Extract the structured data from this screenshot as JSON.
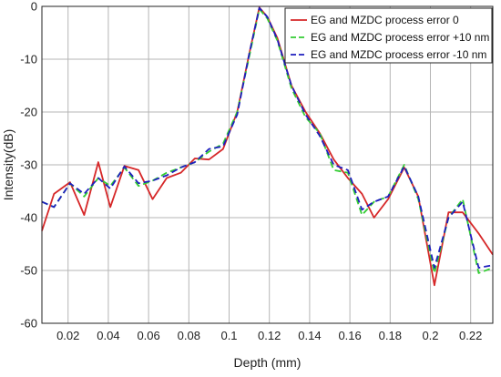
{
  "chart_data": {
    "type": "line",
    "title": "",
    "xlabel": "Depth (mm)",
    "ylabel": "Intensity(dB)",
    "xlim": [
      0.007,
      0.231
    ],
    "ylim": [
      -60,
      0
    ],
    "grid": true,
    "legend_position": "top-right",
    "x_ticks": [
      0.02,
      0.04,
      0.06,
      0.08,
      0.1,
      0.12,
      0.14,
      0.16,
      0.18,
      0.2,
      0.22
    ],
    "x_tick_labels": [
      "0.02",
      "0.04",
      "0.06",
      "0.08",
      "0.1",
      "0.12",
      "0.14",
      "0.16",
      "0.18",
      "0.2",
      "0.22"
    ],
    "y_ticks": [
      0,
      -10,
      -20,
      -30,
      -40,
      -50,
      -60
    ],
    "y_tick_labels": [
      "0",
      "-10",
      "-20",
      "-30",
      "-40",
      "-50",
      "-60"
    ],
    "series": [
      {
        "name": "EG and MZDC process error 0",
        "color": "#d62728",
        "dash": "solid",
        "x": [
          0.007,
          0.013,
          0.021,
          0.028,
          0.035,
          0.041,
          0.048,
          0.055,
          0.062,
          0.069,
          0.076,
          0.083,
          0.09,
          0.097,
          0.104,
          0.11,
          0.115,
          0.119,
          0.124,
          0.131,
          0.138,
          0.145,
          0.152,
          0.159,
          0.166,
          0.172,
          0.179,
          0.187,
          0.194,
          0.202,
          0.209,
          0.216,
          0.224,
          0.231
        ],
        "y": [
          -42.5,
          -35.5,
          -33.3,
          -39.5,
          -29.5,
          -38.0,
          -30.2,
          -31.0,
          -36.5,
          -32.5,
          -31.5,
          -28.8,
          -29.0,
          -27.0,
          -20.0,
          -9.0,
          -0.2,
          -2.0,
          -6.0,
          -15.0,
          -20.0,
          -24.0,
          -29.0,
          -32.5,
          -35.5,
          -40.0,
          -36.5,
          -30.5,
          -36.0,
          -52.8,
          -39.0,
          -39.0,
          -43.0,
          -47.0
        ]
      },
      {
        "name": "EG and MZDC process error +10 nm",
        "color": "#33cc33",
        "dash": "7,4",
        "x": [
          0.007,
          0.013,
          0.021,
          0.028,
          0.035,
          0.041,
          0.048,
          0.055,
          0.062,
          0.069,
          0.076,
          0.083,
          0.09,
          0.097,
          0.104,
          0.11,
          0.115,
          0.119,
          0.124,
          0.131,
          0.138,
          0.145,
          0.152,
          0.159,
          0.166,
          0.172,
          0.179,
          0.187,
          0.194,
          0.202,
          0.209,
          0.216,
          0.224,
          0.231
        ],
        "y": [
          -37.0,
          -38.0,
          -33.5,
          -36.0,
          -32.5,
          -34.0,
          -30.5,
          -34.0,
          -33.0,
          -31.5,
          -30.5,
          -29.5,
          -27.5,
          -26.0,
          -20.0,
          -9.5,
          -0.5,
          -2.3,
          -6.5,
          -15.5,
          -21.0,
          -24.0,
          -31.0,
          -31.5,
          -39.5,
          -37.0,
          -36.0,
          -30.0,
          -36.5,
          -50.5,
          -40.0,
          -36.5,
          -50.5,
          -49.5
        ]
      },
      {
        "name": "EG and MZDC process error -10 nm",
        "color": "#1f1fbf",
        "dash": "7,4",
        "x": [
          0.007,
          0.013,
          0.021,
          0.028,
          0.035,
          0.041,
          0.048,
          0.055,
          0.062,
          0.069,
          0.076,
          0.083,
          0.09,
          0.097,
          0.104,
          0.11,
          0.115,
          0.119,
          0.124,
          0.131,
          0.138,
          0.145,
          0.152,
          0.159,
          0.166,
          0.172,
          0.179,
          0.187,
          0.194,
          0.202,
          0.209,
          0.216,
          0.224,
          0.231
        ],
        "y": [
          -37.0,
          -38.0,
          -33.5,
          -35.5,
          -32.5,
          -34.5,
          -30.3,
          -33.5,
          -33.0,
          -32.0,
          -30.5,
          -29.5,
          -27.0,
          -26.5,
          -20.5,
          -9.0,
          -0.3,
          -2.0,
          -6.3,
          -15.0,
          -20.5,
          -24.5,
          -30.0,
          -31.0,
          -38.5,
          -37.0,
          -36.0,
          -30.3,
          -36.0,
          -49.5,
          -40.0,
          -37.0,
          -49.5,
          -49.0
        ]
      }
    ]
  }
}
